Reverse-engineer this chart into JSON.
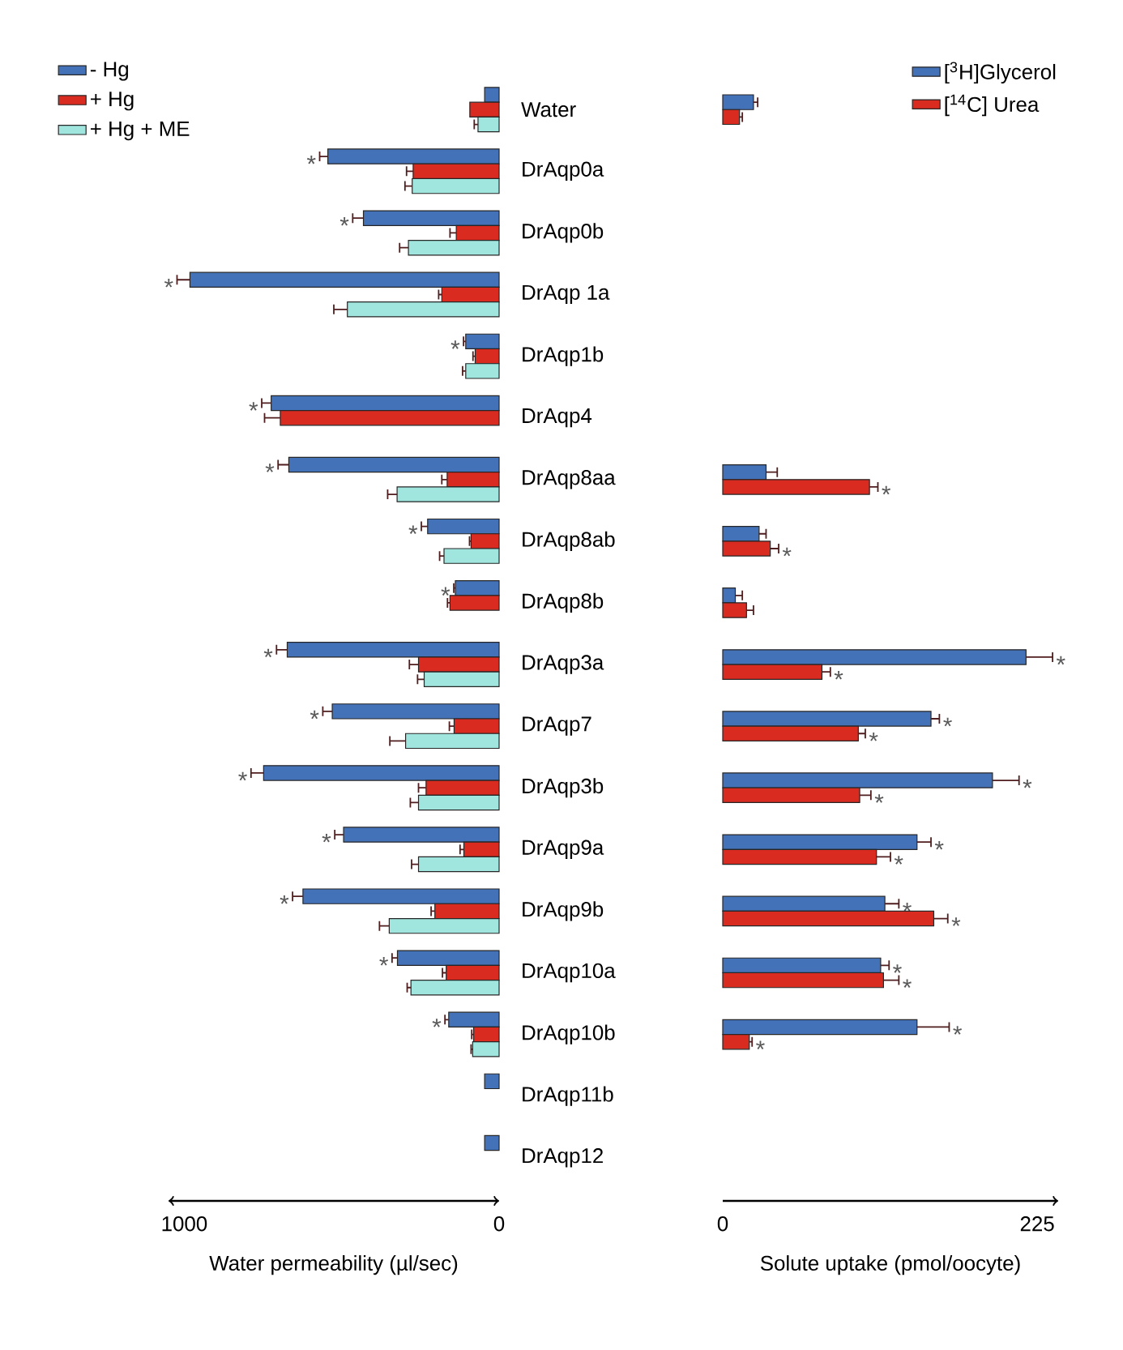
{
  "chart_data": [
    {
      "type": "bar",
      "orientation": "horizontal",
      "xlabel": "Water permeability (µl/sec)",
      "xlim": [
        1050,
        0
      ],
      "xticks": [
        1000,
        0
      ],
      "legend": "top left",
      "categories": [
        "Water",
        "DrAqp0a",
        "DrAqp0b",
        "DrAqp 1a",
        "DrAqp1b",
        "DrAqp4",
        "DrAqp8aa",
        "DrAqp8ab",
        "DrAqp8b",
        "DrAqp3a",
        "DrAqp7",
        "DrAqp3b",
        "DrAqp9a",
        "DrAqp9b",
        "DrAqp10a",
        "DrAqp10b",
        "DrAqp11b",
        "DrAqp12"
      ],
      "series": [
        {
          "name": "- Hg",
          "color": "#4472b8",
          "values": [
            46,
            544,
            431,
            982,
            106,
            724,
            668,
            227,
            139,
            673,
            530,
            748,
            494,
            623,
            323,
            160,
            46,
            46
          ],
          "errors": [
            null,
            26,
            34,
            41,
            7,
            30,
            34,
            20,
            5,
            34,
            30,
            40,
            28,
            33,
            17,
            12,
            null,
            null
          ],
          "value_labels": [
            null,
            "*",
            "*",
            "*",
            "*",
            "*",
            "*",
            "*",
            "*",
            "*",
            "*",
            "*",
            "*",
            "*",
            "*",
            "*",
            null,
            null
          ]
        },
        {
          "name": "+ Hg",
          "color": "#d92b20",
          "values": [
            93,
            273,
            136,
            182,
            76,
            695,
            165,
            89,
            156,
            256,
            143,
            232,
            112,
            204,
            168,
            81,
            null,
            null
          ],
          "errors": [
            null,
            21,
            20,
            10,
            7,
            50,
            17,
            5,
            8,
            29,
            15,
            24,
            12,
            12,
            12,
            6,
            null,
            null
          ]
        },
        {
          "name": "+ Hg + ME",
          "color": "#a0e6df",
          "values": [
            67,
            276,
            288,
            482,
            106,
            null,
            324,
            175,
            null,
            238,
            297,
            256,
            256,
            349,
            280,
            84,
            null,
            null
          ],
          "errors": [
            12,
            23,
            28,
            43,
            10,
            null,
            30,
            14,
            null,
            21,
            50,
            26,
            22,
            31,
            12,
            5,
            null,
            null
          ]
        }
      ]
    },
    {
      "type": "bar",
      "orientation": "horizontal",
      "xlabel": "Solute uptake (pmol/oocyte)",
      "xlim": [
        0,
        240
      ],
      "xticks": [
        0,
        225
      ],
      "legend": "top right",
      "tick_labels": "x",
      "series": [
        {
          "name": "[$^{3}$H]Glycerol",
          "color": "#4472b8",
          "values": [
            22,
            null,
            null,
            null,
            null,
            null,
            31,
            26,
            9,
            217,
            149,
            193,
            139,
            116,
            113,
            139,
            null,
            null
          ],
          "errors": [
            3,
            null,
            null,
            null,
            null,
            null,
            8,
            5,
            5,
            19,
            6,
            19,
            10,
            10,
            6,
            23,
            null,
            null
          ],
          "value_labels": [
            null,
            null,
            null,
            null,
            null,
            null,
            null,
            null,
            null,
            "*",
            "*",
            "*",
            "*",
            "*",
            "*",
            "*",
            null,
            null
          ]
        },
        {
          "name": "[$^{14}$C] Urea",
          "color": "#d92b20",
          "values": [
            12,
            null,
            null,
            null,
            null,
            null,
            105,
            34,
            17,
            71,
            97,
            98,
            110,
            151,
            115,
            19,
            null,
            null
          ],
          "errors": [
            2,
            null,
            null,
            null,
            null,
            null,
            6,
            6,
            5,
            6,
            5,
            8,
            10,
            10,
            11,
            2,
            null,
            null
          ],
          "value_labels": [
            null,
            null,
            null,
            null,
            null,
            null,
            "*",
            "*",
            null,
            "*",
            "*",
            "*",
            "*",
            "*",
            "*",
            "*",
            null,
            null
          ]
        }
      ]
    }
  ]
}
